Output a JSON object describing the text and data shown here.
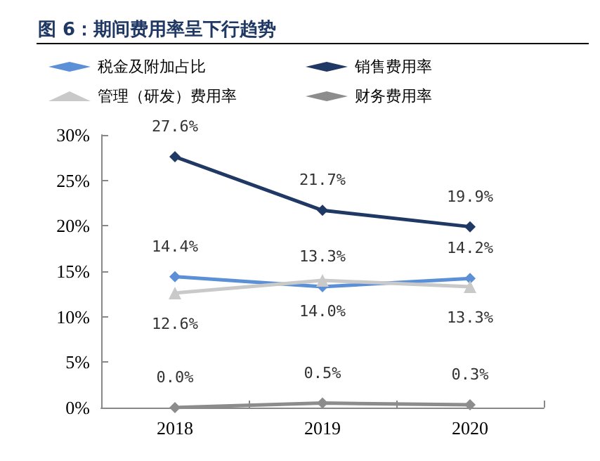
{
  "chart_data": {
    "type": "line",
    "title": "图 6：期间费用率呈下行趋势",
    "categories": [
      "2018",
      "2019",
      "2020"
    ],
    "series": [
      {
        "name": "税金及附加占比",
        "color": "#5b8fd6",
        "marker": "diamond",
        "values": [
          14.4,
          13.3,
          14.2
        ],
        "value_labels": [
          "14.4%",
          "13.3%",
          "14.2%"
        ]
      },
      {
        "name": "销售费用率",
        "color": "#1f3864",
        "marker": "diamond",
        "values": [
          27.6,
          21.7,
          19.9
        ],
        "value_labels": [
          "27.6%",
          "21.7%",
          "19.9%"
        ]
      },
      {
        "name": "管理（研发）费用率",
        "color": "#c9c9c9",
        "marker": "triangle",
        "values": [
          12.6,
          14.0,
          13.3
        ],
        "value_labels": [
          "12.6%",
          "14.0%",
          "13.3%"
        ]
      },
      {
        "name": "财务费用率",
        "color": "#8c8c8c",
        "marker": "diamond",
        "values": [
          0.0,
          0.5,
          0.3
        ],
        "value_labels": [
          "0.0%",
          "0.5%",
          "0.3%"
        ]
      }
    ],
    "ylim": [
      0,
      30
    ],
    "yticks": [
      {
        "value": 0,
        "label": "0%"
      },
      {
        "value": 5,
        "label": "5%"
      },
      {
        "value": 10,
        "label": "10%"
      },
      {
        "value": 15,
        "label": "15%"
      },
      {
        "value": 20,
        "label": "20%"
      },
      {
        "value": 25,
        "label": "25%"
      },
      {
        "value": 30,
        "label": "30%"
      }
    ],
    "grid": false,
    "legend": "top",
    "line_style": "solid"
  }
}
